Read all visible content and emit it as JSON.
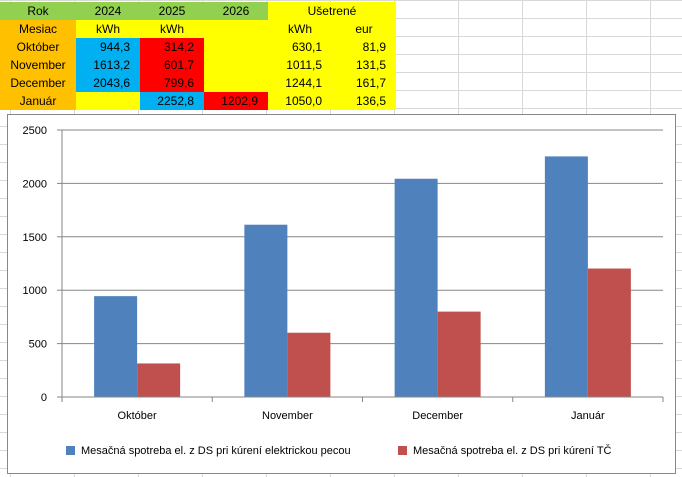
{
  "table": {
    "headers": {
      "rok": "Rok",
      "y2024": "2024",
      "y2025": "2025",
      "y2026": "2026",
      "usetrene": "Ušetrené",
      "mesiac": "Mesiac",
      "kwh_2024": "kWh",
      "kwh_2025": "kWh",
      "kwh_saved": "kWh",
      "eur": "eur"
    },
    "rows": [
      {
        "month": "Október",
        "v2024": "944,3",
        "v2025": "314,2",
        "v2026": "",
        "kwh": "630,1",
        "eur": "81,9"
      },
      {
        "month": "November",
        "v2024": "1613,2",
        "v2025": "601,7",
        "v2026": "",
        "kwh": "1011,5",
        "eur": "131,5"
      },
      {
        "month": "December",
        "v2024": "2043,6",
        "v2025": "799,6",
        "v2026": "",
        "kwh": "1244,1",
        "eur": "161,7"
      },
      {
        "month": "Január",
        "v2024": "",
        "v2025": "2252,8",
        "v2026": "1202,9",
        "kwh": "1050,0",
        "eur": "136,5"
      }
    ]
  },
  "chart_data": {
    "type": "bar",
    "categories": [
      "Október",
      "November",
      "December",
      "Január"
    ],
    "series": [
      {
        "name": "Mesačná spotreba el. z DS pri kúrení elektrickou pecou",
        "color": "#4f81bd",
        "values": [
          944.3,
          1613.2,
          2043.6,
          2252.8
        ]
      },
      {
        "name": "Mesačná spotreba el. z DS pri kúrení TČ",
        "color": "#c0504d",
        "values": [
          314.2,
          601.7,
          799.6,
          1202.9
        ]
      }
    ],
    "yticks": [
      "0",
      "500",
      "1000",
      "1500",
      "2000",
      "2500"
    ],
    "ylim": [
      0,
      2500
    ],
    "grid": true,
    "legend": "bottom"
  }
}
